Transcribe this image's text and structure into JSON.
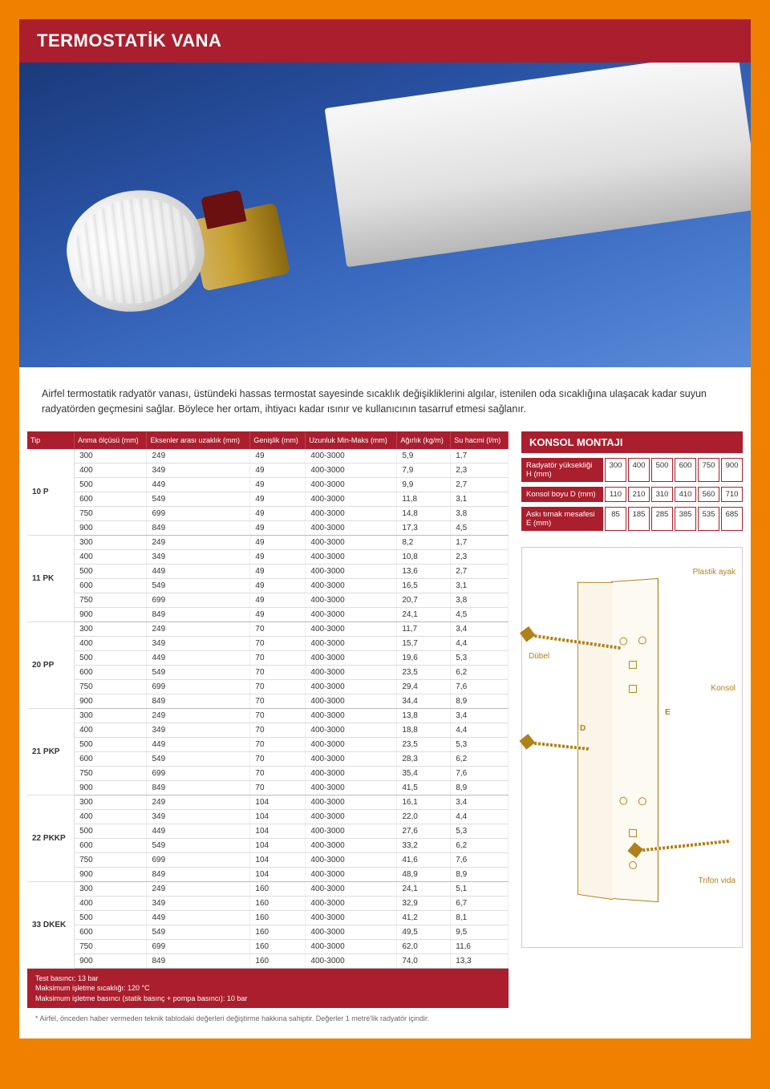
{
  "title": "TERMOSTATİK VANA",
  "intro_text": "Airfel termostatik radyatör vanası, üstündeki hassas termostat sayesinde sıcaklık değişikliklerini algılar, istenilen oda sıcaklığına ulaşacak kadar suyun radyatörden geçmesini sağlar. Böylece her ortam, ihtiyacı kadar ısınır ve kullanıcının tasarruf etmesi sağlanır.",
  "spec_table": {
    "columns": [
      "Tip",
      "Anma ölçüsü (mm)",
      "Eksenler arası uzaklık (mm)",
      "Genişlik (mm)",
      "Uzunluk Min-Maks (mm)",
      "Ağırlık (kg/m)",
      "Su hacmi (l/m)"
    ],
    "groups": [
      {
        "tip": "10 P",
        "rows": [
          [
            "300",
            "249",
            "49",
            "400-3000",
            "5,9",
            "1,7"
          ],
          [
            "400",
            "349",
            "49",
            "400-3000",
            "7,9",
            "2,3"
          ],
          [
            "500",
            "449",
            "49",
            "400-3000",
            "9,9",
            "2,7"
          ],
          [
            "600",
            "549",
            "49",
            "400-3000",
            "11,8",
            "3,1"
          ],
          [
            "750",
            "699",
            "49",
            "400-3000",
            "14,8",
            "3,8"
          ],
          [
            "900",
            "849",
            "49",
            "400-3000",
            "17,3",
            "4,5"
          ]
        ]
      },
      {
        "tip": "11 PK",
        "rows": [
          [
            "300",
            "249",
            "49",
            "400-3000",
            "8,2",
            "1,7"
          ],
          [
            "400",
            "349",
            "49",
            "400-3000",
            "10,8",
            "2,3"
          ],
          [
            "500",
            "449",
            "49",
            "400-3000",
            "13,6",
            "2,7"
          ],
          [
            "600",
            "549",
            "49",
            "400-3000",
            "16,5",
            "3,1"
          ],
          [
            "750",
            "699",
            "49",
            "400-3000",
            "20,7",
            "3,8"
          ],
          [
            "900",
            "849",
            "49",
            "400-3000",
            "24,1",
            "4,5"
          ]
        ]
      },
      {
        "tip": "20 PP",
        "rows": [
          [
            "300",
            "249",
            "70",
            "400-3000",
            "11,7",
            "3,4"
          ],
          [
            "400",
            "349",
            "70",
            "400-3000",
            "15,7",
            "4,4"
          ],
          [
            "500",
            "449",
            "70",
            "400-3000",
            "19,6",
            "5,3"
          ],
          [
            "600",
            "549",
            "70",
            "400-3000",
            "23,5",
            "6,2"
          ],
          [
            "750",
            "699",
            "70",
            "400-3000",
            "29,4",
            "7,6"
          ],
          [
            "900",
            "849",
            "70",
            "400-3000",
            "34,4",
            "8,9"
          ]
        ]
      },
      {
        "tip": "21 PKP",
        "rows": [
          [
            "300",
            "249",
            "70",
            "400-3000",
            "13,8",
            "3,4"
          ],
          [
            "400",
            "349",
            "70",
            "400-3000",
            "18,8",
            "4,4"
          ],
          [
            "500",
            "449",
            "70",
            "400-3000",
            "23,5",
            "5,3"
          ],
          [
            "600",
            "549",
            "70",
            "400-3000",
            "28,3",
            "6,2"
          ],
          [
            "750",
            "699",
            "70",
            "400-3000",
            "35,4",
            "7,6"
          ],
          [
            "900",
            "849",
            "70",
            "400-3000",
            "41,5",
            "8,9"
          ]
        ]
      },
      {
        "tip": "22 PKKP",
        "rows": [
          [
            "300",
            "249",
            "104",
            "400-3000",
            "16,1",
            "3,4"
          ],
          [
            "400",
            "349",
            "104",
            "400-3000",
            "22,0",
            "4,4"
          ],
          [
            "500",
            "449",
            "104",
            "400-3000",
            "27,6",
            "5,3"
          ],
          [
            "600",
            "549",
            "104",
            "400-3000",
            "33,2",
            "6,2"
          ],
          [
            "750",
            "699",
            "104",
            "400-3000",
            "41,6",
            "7,6"
          ],
          [
            "900",
            "849",
            "104",
            "400-3000",
            "48,9",
            "8,9"
          ]
        ]
      },
      {
        "tip": "33 DKEK",
        "rows": [
          [
            "300",
            "249",
            "160",
            "400-3000",
            "24,1",
            "5,1"
          ],
          [
            "400",
            "349",
            "160",
            "400-3000",
            "32,9",
            "6,7"
          ],
          [
            "500",
            "449",
            "160",
            "400-3000",
            "41,2",
            "8,1"
          ],
          [
            "600",
            "549",
            "160",
            "400-3000",
            "49,5",
            "9,5"
          ],
          [
            "750",
            "699",
            "160",
            "400-3000",
            "62,0",
            "11,6"
          ],
          [
            "900",
            "849",
            "160",
            "400-3000",
            "74,0",
            "13,3"
          ]
        ]
      }
    ],
    "notes": [
      "Test basıncı: 13 bar",
      "Maksimum işletme sıcaklığı: 120 °C",
      "Maksimum işletme basıncı (statik basınç + pompa basıncı): 10 bar"
    ],
    "footnote": "* Airfel, önceden haber vermeden teknik tablodaki değerleri değiştirme hakkına sahiptir. Değerler 1 metre'lik radyatör içindir."
  },
  "konsol": {
    "title": "KONSOL MONTAJI",
    "rows": [
      {
        "label": "Radyatör yüksekliği H (mm)",
        "values": [
          "300",
          "400",
          "500",
          "600",
          "750",
          "900"
        ]
      },
      {
        "label": "Konsol boyu D (mm)",
        "values": [
          "110",
          "210",
          "310",
          "410",
          "560",
          "710"
        ]
      },
      {
        "label": "Askı tırnak mesafesi E (mm)",
        "values": [
          "85",
          "185",
          "285",
          "385",
          "535",
          "685"
        ]
      }
    ],
    "annotations": {
      "plastik_ayak": "Plastik ayak",
      "dubel": "Dübel",
      "konsol": "Konsol",
      "trifon_vida": "Trifon vida",
      "D": "D",
      "E": "E"
    }
  },
  "colors": {
    "page_bg": "#f08000",
    "brand_red": "#aa1e2d",
    "hero_blue": "#2850a0",
    "diagram": "#b0801a"
  }
}
